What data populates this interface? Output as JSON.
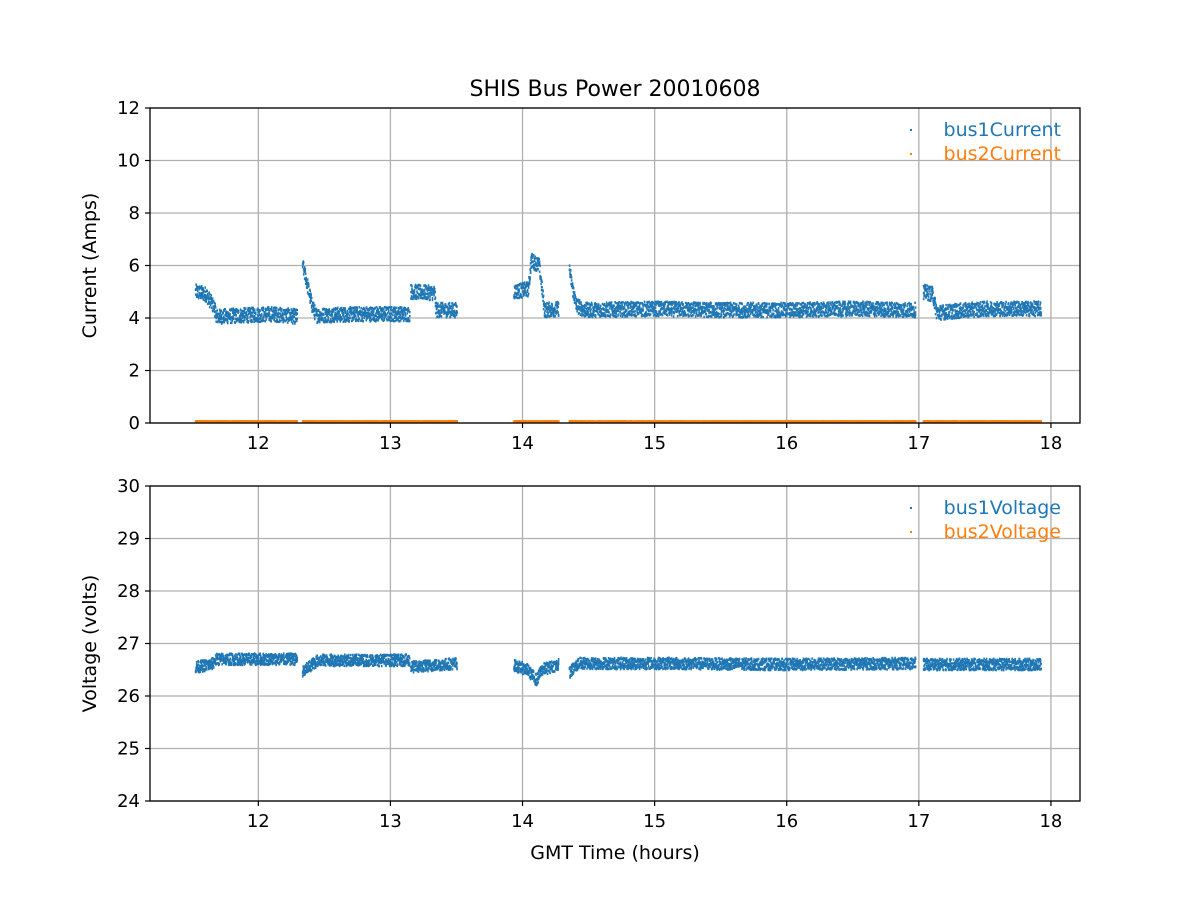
{
  "title": "SHIS Bus Power 20010608",
  "colors": {
    "series1": "#1f77b4",
    "series2": "#ff7f0e",
    "grid": "#b0b0b0"
  },
  "chart_data": [
    {
      "type": "scatter",
      "xlabel": "",
      "ylabel": "Current (Amps)",
      "xlim": [
        11.18,
        18.22
      ],
      "ylim": [
        0,
        12
      ],
      "xticks": [
        12,
        13,
        14,
        15,
        16,
        17,
        18
      ],
      "yticks": [
        0,
        2,
        4,
        6,
        8,
        10,
        12
      ],
      "grid": true,
      "legend": "top-right",
      "series": [
        {
          "name": "bus1Current",
          "color": "#1f77b4",
          "noise": 0.28,
          "segments": [
            [
              [
                11.52,
                5.0
              ],
              [
                11.6,
                4.9
              ],
              [
                11.66,
                4.4
              ],
              [
                11.68,
                4.05
              ],
              [
                11.9,
                4.1
              ],
              [
                12.1,
                4.15
              ],
              [
                12.29,
                4.05
              ]
            ],
            [
              [
                12.33,
                6.0
              ],
              [
                12.36,
                5.4
              ],
              [
                12.4,
                4.5
              ],
              [
                12.43,
                4.1
              ],
              [
                12.8,
                4.15
              ],
              [
                13.14,
                4.15
              ]
            ],
            [
              [
                13.15,
                5.0
              ],
              [
                13.33,
                4.95
              ],
              [
                13.34,
                4.3
              ],
              [
                13.5,
                4.3
              ]
            ],
            [
              [
                13.93,
                5.0
              ],
              [
                14.04,
                5.1
              ],
              [
                14.06,
                6.2
              ],
              [
                14.12,
                6.0
              ],
              [
                14.14,
                5.2
              ],
              [
                14.16,
                4.3
              ],
              [
                14.27,
                4.35
              ]
            ],
            [
              [
                14.35,
                5.8
              ],
              [
                14.37,
                5.2
              ],
              [
                14.4,
                4.5
              ],
              [
                14.46,
                4.3
              ],
              [
                15.0,
                4.35
              ],
              [
                15.5,
                4.3
              ],
              [
                16.0,
                4.3
              ],
              [
                16.5,
                4.35
              ],
              [
                16.97,
                4.3
              ]
            ],
            [
              [
                17.03,
                5.0
              ],
              [
                17.1,
                4.9
              ],
              [
                17.13,
                4.2
              ],
              [
                17.5,
                4.35
              ],
              [
                17.92,
                4.35
              ]
            ]
          ]
        },
        {
          "name": "bus2Current",
          "color": "#ff7f0e",
          "noise": 0.02,
          "segments": [
            [
              [
                11.52,
                0.05
              ],
              [
                12.29,
                0.05
              ]
            ],
            [
              [
                12.33,
                0.05
              ],
              [
                13.5,
                0.05
              ]
            ],
            [
              [
                13.93,
                0.05
              ],
              [
                14.27,
                0.05
              ]
            ],
            [
              [
                14.35,
                0.05
              ],
              [
                16.97,
                0.05
              ]
            ],
            [
              [
                17.03,
                0.05
              ],
              [
                17.92,
                0.05
              ]
            ]
          ]
        }
      ]
    },
    {
      "type": "scatter",
      "xlabel": "GMT Time (hours)",
      "ylabel": "Voltage (volts)",
      "xlim": [
        11.18,
        18.22
      ],
      "ylim": [
        24,
        30
      ],
      "xticks": [
        12,
        13,
        14,
        15,
        16,
        17,
        18
      ],
      "yticks": [
        24,
        25,
        26,
        27,
        28,
        29,
        30
      ],
      "grid": true,
      "legend": "top-right",
      "series": [
        {
          "name": "bus1Voltage",
          "color": "#1f77b4",
          "noise": 0.11,
          "segments": [
            [
              [
                11.52,
                26.55
              ],
              [
                11.64,
                26.6
              ],
              [
                11.68,
                26.7
              ],
              [
                12.29,
                26.7
              ]
            ],
            [
              [
                12.33,
                26.45
              ],
              [
                12.4,
                26.6
              ],
              [
                12.45,
                26.68
              ],
              [
                13.14,
                26.68
              ]
            ],
            [
              [
                13.15,
                26.55
              ],
              [
                13.5,
                26.62
              ]
            ],
            [
              [
                13.93,
                26.58
              ],
              [
                14.03,
                26.5
              ],
              [
                14.1,
                26.3
              ],
              [
                14.14,
                26.5
              ],
              [
                14.27,
                26.6
              ]
            ],
            [
              [
                14.35,
                26.45
              ],
              [
                14.42,
                26.62
              ],
              [
                15.0,
                26.62
              ],
              [
                16.0,
                26.6
              ],
              [
                16.97,
                26.62
              ]
            ],
            [
              [
                17.03,
                26.6
              ],
              [
                17.92,
                26.6
              ]
            ]
          ]
        },
        {
          "name": "bus2Voltage",
          "color": "#ff7f0e",
          "noise": 0.0,
          "segments": []
        }
      ]
    }
  ]
}
